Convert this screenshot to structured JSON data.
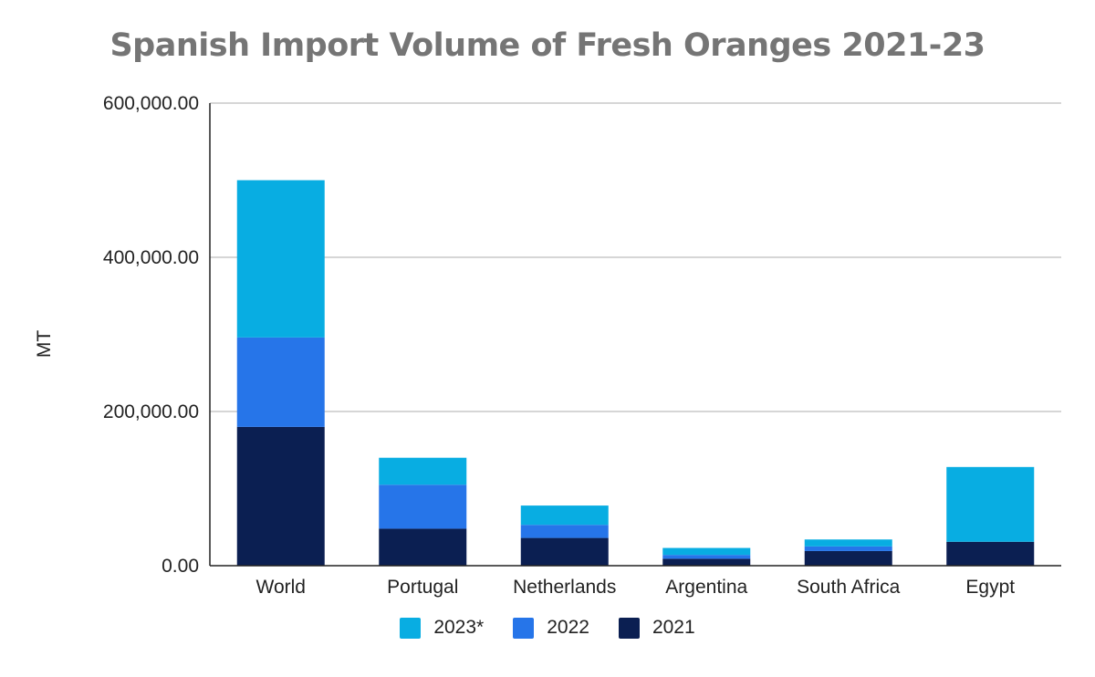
{
  "chart_data": {
    "type": "bar",
    "stacked": true,
    "title": "Spanish Import Volume of Fresh Oranges 2021-23",
    "xlabel": "",
    "ylabel": "MT",
    "ylim": [
      0,
      600000
    ],
    "yticks": [
      {
        "value": 0,
        "label": "0.00"
      },
      {
        "value": 200000,
        "label": "200,000.00"
      },
      {
        "value": 400000,
        "label": "400,000.00"
      },
      {
        "value": 600000,
        "label": "600,000.00"
      }
    ],
    "grid": true,
    "legend_position": "bottom",
    "categories": [
      "World",
      "Portugal",
      "Netherlands",
      "Argentina",
      "South Africa",
      "Egypt"
    ],
    "series": [
      {
        "name": "2021",
        "color": "#0b1f52",
        "values": [
          180000,
          48000,
          36000,
          9000,
          19000,
          31000
        ]
      },
      {
        "name": "2022",
        "color": "#2675e9",
        "values": [
          116000,
          57000,
          17000,
          5000,
          6000,
          0
        ]
      },
      {
        "name": "2023*",
        "color": "#08ade2",
        "values": [
          204000,
          35000,
          25000,
          9000,
          9000,
          97000
        ]
      }
    ],
    "legend_order": [
      "2023*",
      "2022",
      "2021"
    ]
  }
}
